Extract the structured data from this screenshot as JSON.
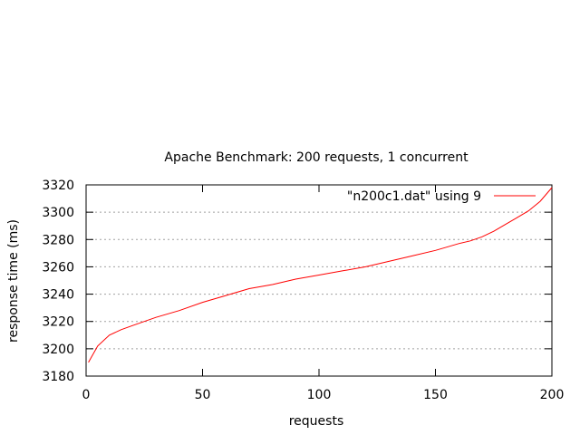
{
  "chart_data": {
    "type": "line",
    "title": "Apache Benchmark: 200 requests, 1 concurrent",
    "xlabel": "requests",
    "ylabel": "response time (ms)",
    "xlim": [
      0,
      200
    ],
    "ylim": [
      3180,
      3320
    ],
    "xticks": [
      0,
      50,
      100,
      150,
      200
    ],
    "yticks": [
      3180,
      3200,
      3220,
      3240,
      3260,
      3280,
      3300,
      3320
    ],
    "grid": "horizontal dashed",
    "legend_position": "top-right",
    "series": [
      {
        "name": "\"n200c1.dat\" using 9",
        "color": "#ff0000",
        "points": [
          [
            1,
            3190
          ],
          [
            5,
            3202
          ],
          [
            10,
            3210
          ],
          [
            15,
            3214
          ],
          [
            20,
            3217
          ],
          [
            30,
            3223
          ],
          [
            40,
            3228
          ],
          [
            50,
            3234
          ],
          [
            60,
            3239
          ],
          [
            70,
            3244
          ],
          [
            80,
            3247
          ],
          [
            90,
            3251
          ],
          [
            100,
            3254
          ],
          [
            110,
            3257
          ],
          [
            120,
            3260
          ],
          [
            130,
            3264
          ],
          [
            140,
            3268
          ],
          [
            150,
            3272
          ],
          [
            160,
            3277
          ],
          [
            165,
            3279
          ],
          [
            170,
            3282
          ],
          [
            175,
            3286
          ],
          [
            180,
            3291
          ],
          [
            185,
            3296
          ],
          [
            190,
            3301
          ],
          [
            195,
            3308
          ],
          [
            200,
            3318
          ]
        ]
      }
    ]
  }
}
